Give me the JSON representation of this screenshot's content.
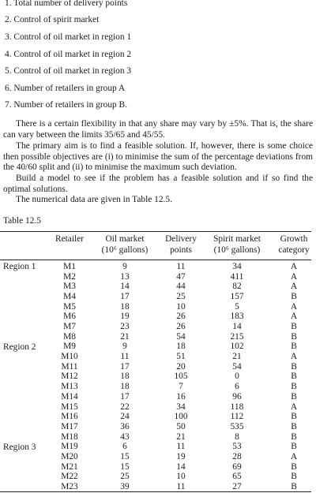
{
  "list": [
    "1. Total number of delivery points",
    "2. Control of spirit market",
    "3. Control of oil market in region 1",
    "4. Control of oil market in region 2",
    "5. Control of oil market in region 3",
    "6. Number of retailers in group A",
    "7. Number of retailers in group B."
  ],
  "paragraphs": [
    "There is a certain flexibility in that any share may vary by ±5%. That is, the share can vary between the limits 35/65 and 45/55.",
    "The primary aim is to find a feasible solution. If, however, there is some choice then possible objectives are (i) to minimise the sum of the percentage deviations from the 40/60 split and (ii) to minimise the maximum such deviation.",
    "Build a model to see if the problem has a feasible solution and if so find the optimal solutions.",
    "The numerical data are given in Table 12.5."
  ],
  "table": {
    "caption": "Table 12.5",
    "headers": [
      {
        "line1": "Retailer",
        "line2": ""
      },
      {
        "line1": "Oil market",
        "line2": "(10⁶ gallons)"
      },
      {
        "line1": "Delivery",
        "line2": "points"
      },
      {
        "line1": "Spirit market",
        "line2": "(10⁶ gallons)"
      },
      {
        "line1": "Growth",
        "line2": "category"
      }
    ],
    "region_labels": [
      "Region 1",
      "Region 2",
      "Region 3"
    ],
    "rows": [
      [
        "M1",
        "9",
        "11",
        "34",
        "A"
      ],
      [
        "M2",
        "13",
        "47",
        "411",
        "A"
      ],
      [
        "M3",
        "14",
        "44",
        "82",
        "A"
      ],
      [
        "M4",
        "17",
        "25",
        "157",
        "B"
      ],
      [
        "M5",
        "18",
        "10",
        "5",
        "A"
      ],
      [
        "M6",
        "19",
        "26",
        "183",
        "A"
      ],
      [
        "M7",
        "23",
        "26",
        "14",
        "B"
      ],
      [
        "M8",
        "21",
        "54",
        "215",
        "B"
      ],
      [
        "M9",
        "9",
        "18",
        "102",
        "B"
      ],
      [
        "M10",
        "11",
        "51",
        "21",
        "A"
      ],
      [
        "M11",
        "17",
        "20",
        "54",
        "B"
      ],
      [
        "M12",
        "18",
        "105",
        "0",
        "B"
      ],
      [
        "M13",
        "18",
        "7",
        "6",
        "B"
      ],
      [
        "M14",
        "17",
        "16",
        "96",
        "B"
      ],
      [
        "M15",
        "22",
        "34",
        "118",
        "A"
      ],
      [
        "M16",
        "24",
        "100",
        "112",
        "B"
      ],
      [
        "M17",
        "36",
        "50",
        "535",
        "B"
      ],
      [
        "M18",
        "43",
        "21",
        "8",
        "B"
      ],
      [
        "M19",
        "6",
        "11",
        "53",
        "B"
      ],
      [
        "M20",
        "15",
        "19",
        "28",
        "A"
      ],
      [
        "M21",
        "15",
        "14",
        "69",
        "B"
      ],
      [
        "M22",
        "25",
        "10",
        "65",
        "B"
      ],
      [
        "M23",
        "39",
        "11",
        "27",
        "B"
      ]
    ]
  }
}
